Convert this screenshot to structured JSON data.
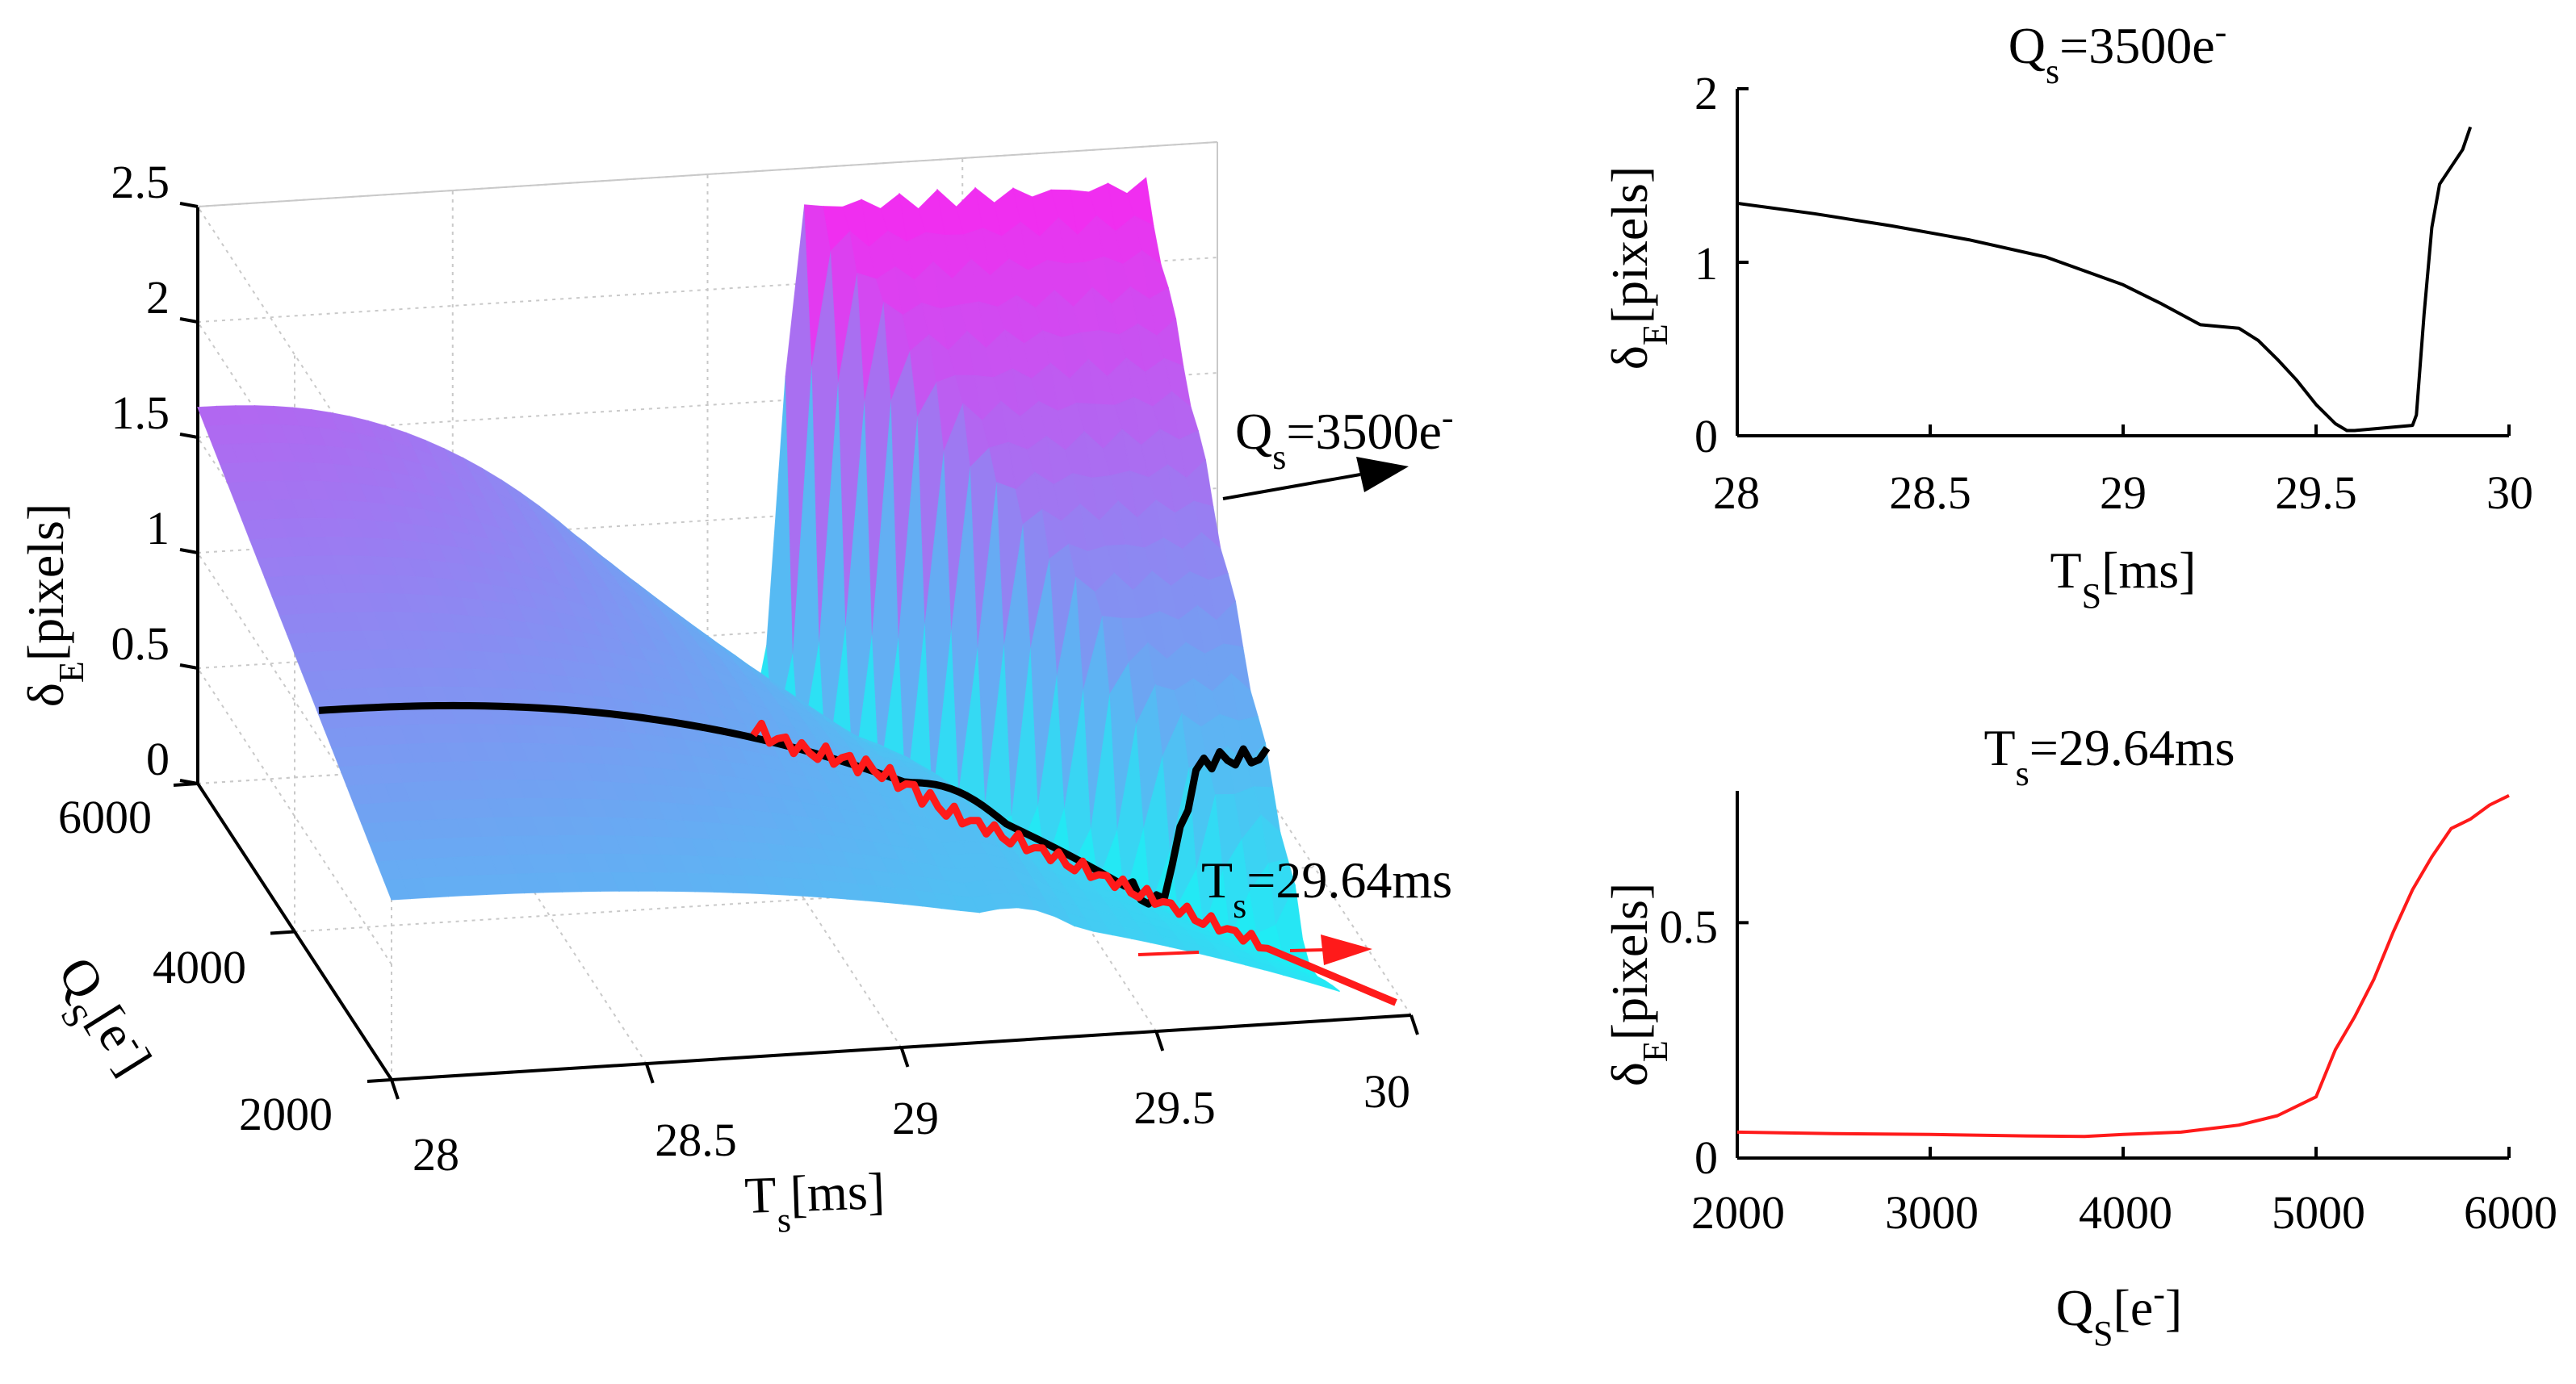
{
  "colors": {
    "surface_low": "#19F2F4",
    "surface_high": "#F22CF0",
    "black_curve": "#000000",
    "red_curve": "#FF1A1A",
    "axis": "#000000",
    "grid": "#C9C9C9"
  },
  "surface_plot": {
    "z_axis_label": "δE[pixels]",
    "z_axis_label_parts": {
      "main": "δ",
      "sub": "E",
      "tail": "[pixels]"
    },
    "z_ticks": [
      "0",
      "0.5",
      "1",
      "1.5",
      "2",
      "2.5"
    ],
    "q_axis_label": "QS[e-]",
    "q_axis_label_parts": {
      "main": "Q",
      "sub": "S",
      "tail": "[e",
      "sup": "-",
      "close": "]"
    },
    "q_ticks": [
      "2000",
      "4000",
      "6000"
    ],
    "t_axis_label": "Ts[ms]",
    "t_axis_label_parts": {
      "main": "T",
      "sub": "s",
      "tail": "[ms]"
    },
    "t_ticks": [
      "28",
      "28.5",
      "29",
      "29.5",
      "30"
    ],
    "annotation_q": "Qs=3500e-",
    "annotation_q_parts": {
      "main": "Q",
      "sub": "s",
      "tail": "=3500e",
      "sup": "-"
    },
    "annotation_t": "Ts=29.64ms",
    "annotation_t_parts": {
      "main": "T",
      "sub": "s",
      "tail": "=29.64ms"
    }
  },
  "chart_data": [
    {
      "type": "surface",
      "x_label": "Ts[ms]",
      "y_label": "QS[e-]",
      "z_label": "δE[pixels]",
      "xlim": [
        28,
        30
      ],
      "ylim": [
        2000,
        6000
      ],
      "zlim": [
        0,
        2.5
      ],
      "x_ticks": [
        28,
        28.5,
        29,
        29.5,
        30
      ],
      "y_ticks": [
        2000,
        4000,
        6000
      ],
      "z_ticks": [
        0,
        0.5,
        1,
        1.5,
        2,
        2.5
      ],
      "slices": [
        {
          "name": "Qs=3500e-",
          "fixed": "Q",
          "value": 3500,
          "color": "black"
        },
        {
          "name": "Ts=29.64ms",
          "fixed": "T",
          "value": 29.64,
          "color": "red"
        }
      ]
    },
    {
      "type": "line",
      "title": "Qs=3500e-",
      "title_parts": {
        "main": "Q",
        "sub": "s",
        "tail": "=3500e",
        "sup": "-"
      },
      "xlabel": "TS[ms]",
      "xlabel_parts": {
        "main": "T",
        "sub": "S",
        "tail": "[ms]"
      },
      "ylabel": "δE[pixels]",
      "ylabel_parts": {
        "main": "δ",
        "sub": "E",
        "tail": "[pixels]"
      },
      "xlim": [
        28,
        30
      ],
      "ylim": [
        0,
        2
      ],
      "x_ticks": [
        "28",
        "28.5",
        "29",
        "29.5",
        "30"
      ],
      "y_ticks": [
        "0",
        "1",
        "2"
      ],
      "series": [
        {
          "name": "Qs=3500e-",
          "color": "#000000",
          "x": [
            28.0,
            28.2,
            28.4,
            28.6,
            28.8,
            29.0,
            29.1,
            29.2,
            29.3,
            29.35,
            29.4,
            29.45,
            29.5,
            29.55,
            29.58,
            29.6,
            29.65,
            29.7,
            29.75,
            29.76,
            29.78,
            29.8,
            29.82,
            29.85,
            29.88,
            29.9
          ],
          "y": [
            1.34,
            1.28,
            1.21,
            1.13,
            1.03,
            0.87,
            0.76,
            0.64,
            0.62,
            0.55,
            0.44,
            0.32,
            0.18,
            0.07,
            0.03,
            0.03,
            0.04,
            0.05,
            0.06,
            0.12,
            0.7,
            1.2,
            1.45,
            1.55,
            1.65,
            1.78
          ]
        }
      ]
    },
    {
      "type": "line",
      "title": "Ts=29.64ms",
      "title_parts": {
        "main": "T",
        "sub": "s",
        "tail": "=29.64ms"
      },
      "xlabel": "QS[e-]",
      "xlabel_parts": {
        "main": "Q",
        "sub": "S",
        "tail": "[e",
        "sup": "-",
        "close": "]"
      },
      "ylabel": "δE[pixels]",
      "ylabel_parts": {
        "main": "δ",
        "sub": "E",
        "tail": "[pixels]"
      },
      "xlim": [
        2000,
        6000
      ],
      "ylim": [
        0,
        0.78
      ],
      "x_ticks": [
        "2000",
        "3000",
        "4000",
        "5000",
        "6000"
      ],
      "y_ticks": [
        "0",
        "0.5"
      ],
      "series": [
        {
          "name": "Ts=29.64ms",
          "color": "#FF1A1A",
          "x": [
            2000,
            2500,
            3000,
            3500,
            3800,
            4000,
            4300,
            4600,
            4800,
            5000,
            5100,
            5200,
            5300,
            5400,
            5500,
            5600,
            5700,
            5800,
            5900,
            6000
          ],
          "y": [
            0.055,
            0.052,
            0.05,
            0.047,
            0.046,
            0.05,
            0.055,
            0.07,
            0.09,
            0.13,
            0.23,
            0.3,
            0.38,
            0.48,
            0.57,
            0.64,
            0.7,
            0.72,
            0.75,
            0.77
          ]
        }
      ]
    }
  ]
}
